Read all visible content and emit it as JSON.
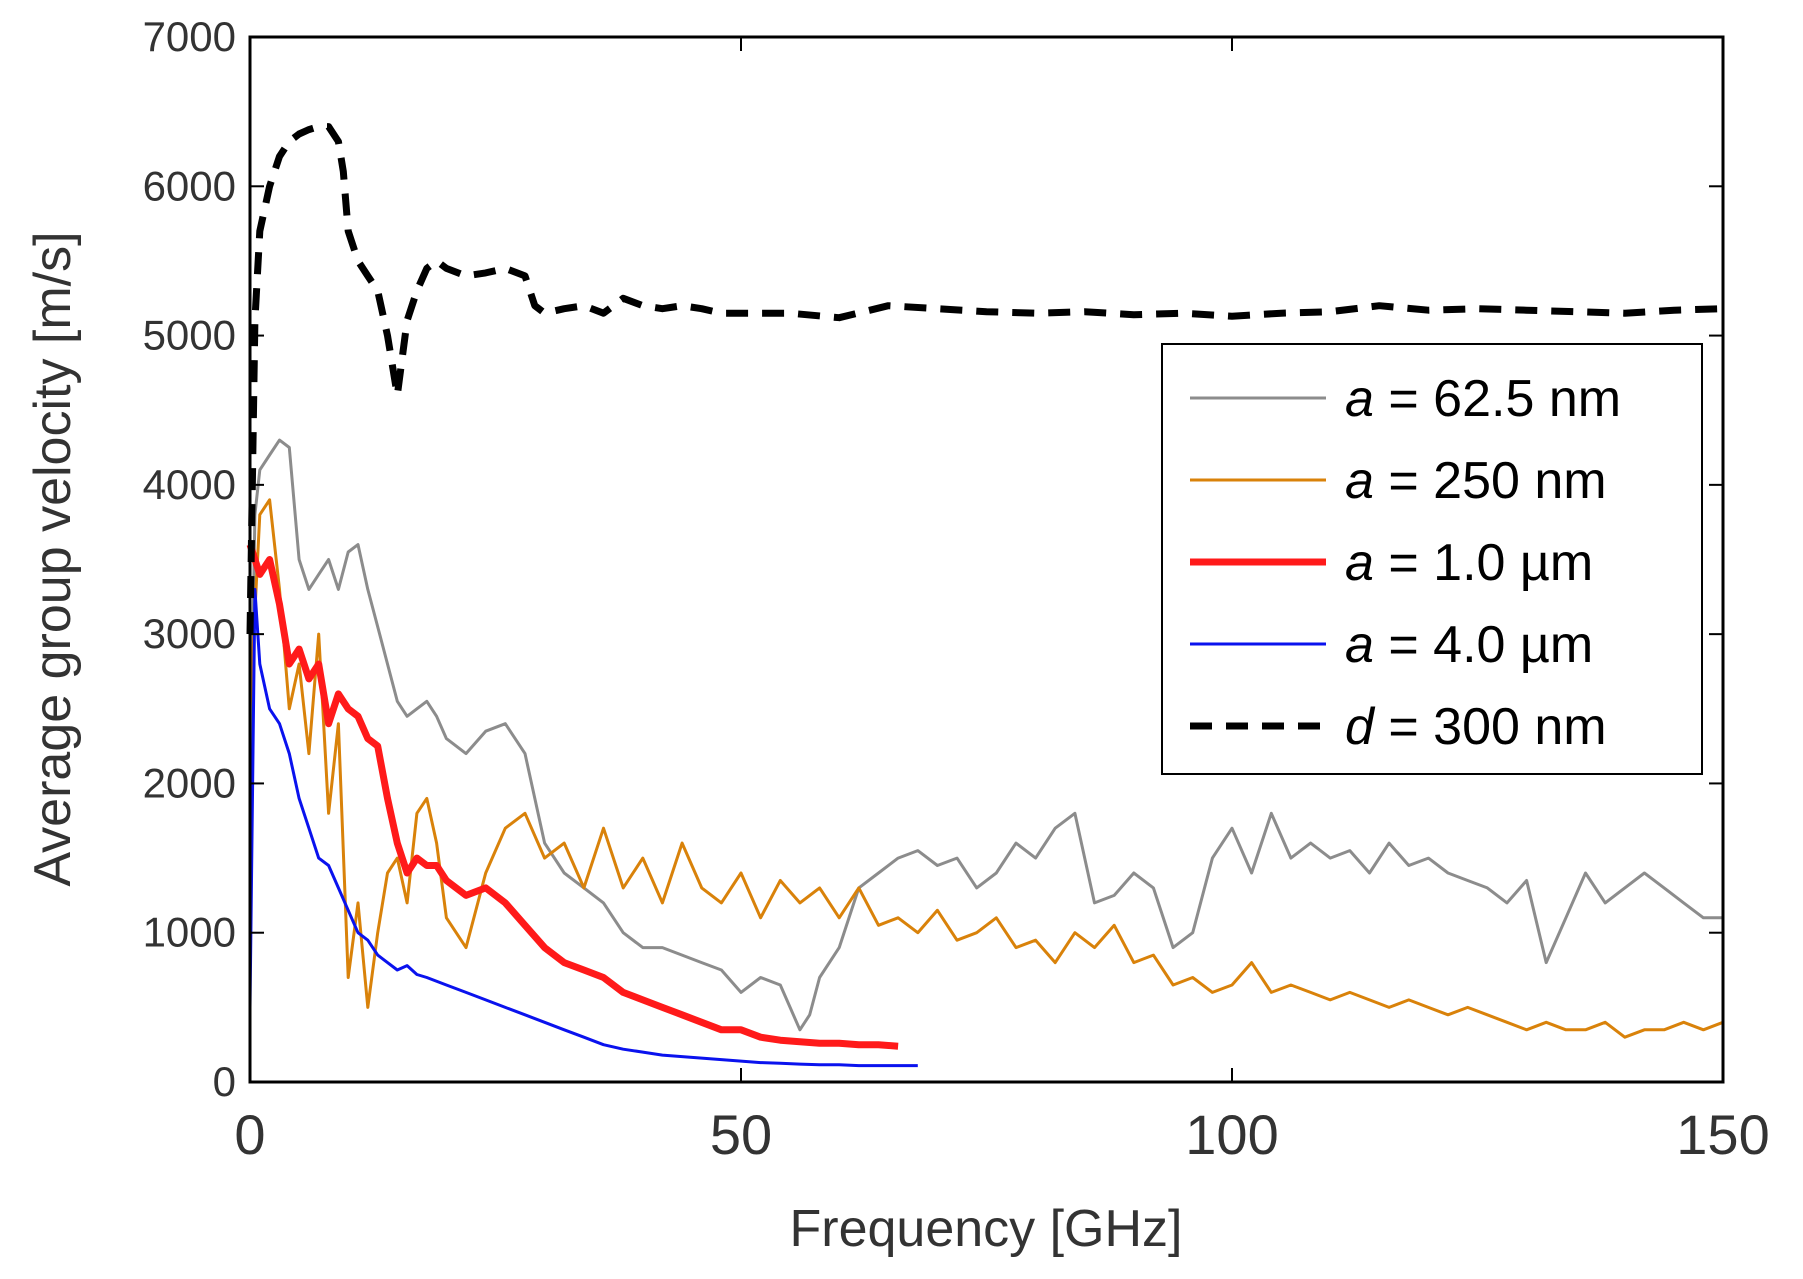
{
  "chart_data": {
    "type": "line",
    "xlabel": "Frequency [GHz]",
    "ylabel": "Average group velocity [m/s]",
    "xlim": [
      0,
      150
    ],
    "ylim": [
      0,
      7000
    ],
    "xticks": [
      0,
      50,
      100,
      150
    ],
    "yticks": [
      0,
      1000,
      2000,
      3000,
      4000,
      5000,
      6000,
      7000
    ],
    "grid": false,
    "legend_position": "right",
    "series": [
      {
        "key": "s1",
        "name_var": "a",
        "name_rest": " = 62.5 nm",
        "color": "#8c8c8c",
        "style": "solid",
        "x": [
          0,
          0.5,
          1,
          2,
          3,
          4,
          5,
          6,
          7,
          8,
          9,
          10,
          11,
          12,
          13,
          14,
          15,
          16,
          17,
          18,
          19,
          20,
          22,
          24,
          26,
          28,
          30,
          32,
          34,
          36,
          38,
          40,
          42,
          44,
          46,
          48,
          50,
          52,
          54,
          55,
          56,
          57,
          58,
          60,
          62,
          64,
          66,
          68,
          70,
          72,
          74,
          76,
          78,
          80,
          82,
          84,
          86,
          88,
          90,
          92,
          94,
          96,
          98,
          100,
          102,
          104,
          106,
          108,
          110,
          112,
          114,
          116,
          118,
          120,
          122,
          124,
          126,
          128,
          130,
          132,
          134,
          136,
          138,
          140,
          142,
          144,
          146,
          148,
          150
        ],
        "y": [
          1800,
          3800,
          4100,
          4200,
          4300,
          4250,
          3500,
          3300,
          3400,
          3500,
          3300,
          3550,
          3600,
          3300,
          3050,
          2800,
          2550,
          2450,
          2500,
          2550,
          2450,
          2300,
          2200,
          2350,
          2400,
          2200,
          1600,
          1400,
          1300,
          1200,
          1000,
          900,
          900,
          850,
          800,
          750,
          600,
          700,
          650,
          500,
          350,
          450,
          700,
          900,
          1300,
          1400,
          1500,
          1550,
          1450,
          1500,
          1300,
          1400,
          1600,
          1500,
          1700,
          1800,
          1200,
          1250,
          1400,
          1300,
          900,
          1000,
          1500,
          1700,
          1400,
          1800,
          1500,
          1600,
          1500,
          1550,
          1400,
          1600,
          1450,
          1500,
          1400,
          1350,
          1300,
          1200,
          1350,
          800,
          1100,
          1400,
          1200,
          1300,
          1400,
          1300,
          1200,
          1100,
          1100
        ]
      },
      {
        "key": "s2",
        "name_var": "a",
        "name_rest": " = 250 nm",
        "color": "#d9820a",
        "style": "solid",
        "x": [
          0,
          1,
          2,
          3,
          4,
          5,
          6,
          7,
          8,
          9,
          10,
          11,
          12,
          13,
          14,
          15,
          16,
          17,
          18,
          19,
          20,
          22,
          24,
          26,
          28,
          30,
          32,
          34,
          36,
          38,
          40,
          42,
          44,
          46,
          48,
          50,
          52,
          54,
          56,
          58,
          60,
          62,
          64,
          66,
          68,
          70,
          72,
          74,
          76,
          78,
          80,
          82,
          84,
          86,
          88,
          90,
          92,
          94,
          96,
          98,
          100,
          102,
          104,
          106,
          108,
          110,
          112,
          114,
          116,
          118,
          120,
          122,
          124,
          126,
          128,
          130,
          132,
          134,
          136,
          138,
          140,
          142,
          144,
          146,
          148,
          150
        ],
        "y": [
          2500,
          3800,
          3900,
          3300,
          2500,
          2800,
          2200,
          3000,
          1800,
          2400,
          700,
          1200,
          500,
          1000,
          1400,
          1500,
          1200,
          1800,
          1900,
          1600,
          1100,
          900,
          1400,
          1700,
          1800,
          1500,
          1600,
          1300,
          1700,
          1300,
          1500,
          1200,
          1600,
          1300,
          1200,
          1400,
          1100,
          1350,
          1200,
          1300,
          1100,
          1300,
          1050,
          1100,
          1000,
          1150,
          950,
          1000,
          1100,
          900,
          950,
          800,
          1000,
          900,
          1050,
          800,
          850,
          650,
          700,
          600,
          650,
          800,
          600,
          650,
          600,
          550,
          600,
          550,
          500,
          550,
          500,
          450,
          500,
          450,
          400,
          350,
          400,
          350,
          350,
          400,
          300,
          350,
          350,
          400,
          350,
          400
        ]
      },
      {
        "key": "s3",
        "name_var": "a",
        "name_rest": " = 1.0 µm",
        "color": "#ff1a1a",
        "style": "thick",
        "x": [
          0,
          1,
          2,
          3,
          4,
          5,
          6,
          7,
          8,
          9,
          10,
          11,
          12,
          13,
          14,
          15,
          16,
          17,
          18,
          19,
          20,
          22,
          24,
          26,
          28,
          30,
          32,
          34,
          36,
          38,
          40,
          42,
          44,
          46,
          48,
          50,
          52,
          54,
          56,
          58,
          60,
          62,
          64,
          66
        ],
        "y": [
          3600,
          3400,
          3500,
          3200,
          2800,
          2900,
          2700,
          2800,
          2400,
          2600,
          2500,
          2450,
          2300,
          2250,
          1900,
          1600,
          1400,
          1500,
          1450,
          1450,
          1350,
          1250,
          1300,
          1200,
          1050,
          900,
          800,
          750,
          700,
          600,
          550,
          500,
          450,
          400,
          350,
          350,
          300,
          280,
          270,
          260,
          260,
          250,
          250,
          240
        ]
      },
      {
        "key": "s4",
        "name_var": "a",
        "name_rest": " = 4.0 µm",
        "color": "#0a12ee",
        "style": "solid",
        "x": [
          0,
          0.5,
          1,
          2,
          3,
          4,
          5,
          6,
          7,
          8,
          9,
          10,
          11,
          12,
          13,
          14,
          15,
          16,
          17,
          18,
          20,
          22,
          24,
          26,
          28,
          30,
          32,
          34,
          36,
          38,
          40,
          42,
          44,
          46,
          48,
          50,
          52,
          54,
          56,
          58,
          60,
          62,
          64,
          66,
          68
        ],
        "y": [
          500,
          3300,
          2800,
          2500,
          2400,
          2200,
          1900,
          1700,
          1500,
          1450,
          1300,
          1150,
          1000,
          950,
          850,
          800,
          750,
          780,
          720,
          700,
          650,
          600,
          550,
          500,
          450,
          400,
          350,
          300,
          250,
          220,
          200,
          180,
          170,
          160,
          150,
          140,
          130,
          125,
          120,
          115,
          115,
          110,
          110,
          110,
          110
        ]
      },
      {
        "key": "s5",
        "name_var": "d",
        "name_rest": " = 300 nm",
        "color": "#000000",
        "style": "dashed",
        "x": [
          0,
          0.5,
          1,
          2,
          3,
          4,
          5,
          6,
          7,
          8,
          9,
          9.5,
          10,
          11,
          12,
          13,
          14,
          15,
          16,
          17,
          18,
          19,
          20,
          22,
          24,
          26,
          28,
          29,
          30,
          32,
          34,
          36,
          38,
          40,
          42,
          44,
          46,
          48,
          50,
          55,
          60,
          65,
          70,
          75,
          80,
          85,
          90,
          95,
          100,
          105,
          110,
          115,
          120,
          125,
          130,
          135,
          140,
          145,
          150
        ],
        "y": [
          3000,
          5100,
          5700,
          6000,
          6200,
          6300,
          6350,
          6380,
          6400,
          6400,
          6300,
          6100,
          5700,
          5500,
          5400,
          5300,
          5000,
          4600,
          5100,
          5300,
          5450,
          5500,
          5450,
          5400,
          5420,
          5450,
          5400,
          5200,
          5150,
          5180,
          5200,
          5150,
          5250,
          5200,
          5180,
          5200,
          5180,
          5150,
          5150,
          5150,
          5120,
          5200,
          5180,
          5160,
          5150,
          5160,
          5140,
          5150,
          5130,
          5150,
          5160,
          5200,
          5170,
          5180,
          5170,
          5160,
          5150,
          5170,
          5180
        ]
      }
    ]
  }
}
